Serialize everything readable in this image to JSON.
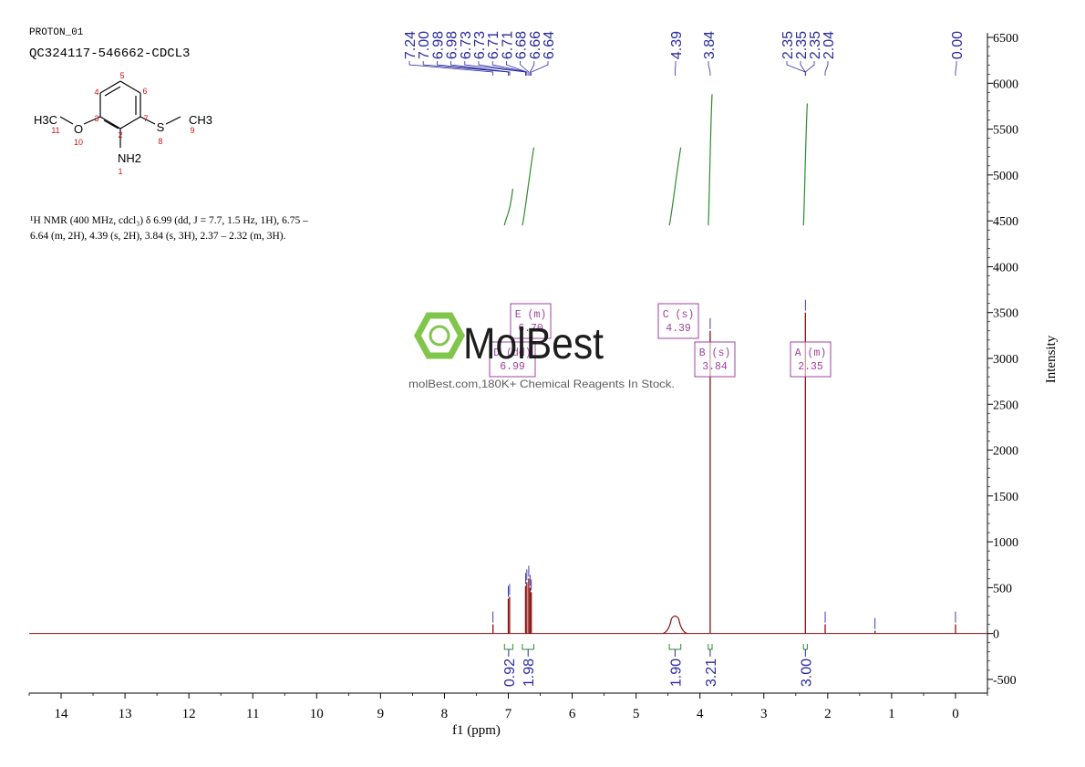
{
  "header": {
    "experiment": "PROTON_01",
    "sample": "QC324117-546662-CDCL3"
  },
  "molecule": {
    "atoms": [
      {
        "label": "H3C",
        "number": "11"
      },
      {
        "label": "O",
        "number": "10"
      },
      {
        "label": "",
        "number": "3"
      },
      {
        "label": "",
        "number": "4"
      },
      {
        "label": "",
        "number": "5"
      },
      {
        "label": "",
        "number": "6"
      },
      {
        "label": "",
        "number": "7"
      },
      {
        "label": "",
        "number": "2"
      },
      {
        "label": "NH2",
        "number": "1"
      },
      {
        "label": "S",
        "number": "8"
      },
      {
        "label": "CH3",
        "number": "9"
      }
    ]
  },
  "description": {
    "line1": "¹H NMR (400 MHz, cdcl₃) δ 6.99 (dd, J = 7.7, 1.5 Hz, 1H), 6.75 –",
    "line2": "6.64 (m, 2H), 4.39 (s, 2H), 3.84 (s, 3H), 2.37 – 2.32 (m, 3H)."
  },
  "watermark": {
    "brand": "MolBest",
    "tagline": "molBest.com,180K+ Chemical Reagents In Stock."
  },
  "colors": {
    "spectrum": "#8b1010",
    "peak_label": "#2a2aa0",
    "integral": "#2e8b2e",
    "multiplet": "#a040a0",
    "axis": "#000000",
    "logo": "#7cc242"
  },
  "chart_data": {
    "type": "line",
    "title": "",
    "xlabel": "f1 (ppm)",
    "ylabel": "Intensity",
    "xlim": [
      14.5,
      -0.5
    ],
    "ylim": [
      -650,
      6550
    ],
    "x_reversed": true,
    "x_ticks": [
      14,
      13,
      12,
      11,
      10,
      9,
      8,
      7,
      6,
      5,
      4,
      3,
      2,
      1,
      0
    ],
    "y_ticks": [
      6500,
      6000,
      5500,
      5000,
      4500,
      4000,
      3500,
      3000,
      2500,
      2000,
      1500,
      1000,
      500,
      0,
      -500
    ],
    "y_axis_side": "right",
    "grid": false,
    "peaks": [
      {
        "ppm": 7.24,
        "height": 100
      },
      {
        "ppm": 7.0,
        "height": 380
      },
      {
        "ppm": 6.98,
        "height": 400
      },
      {
        "ppm": 6.73,
        "height": 520
      },
      {
        "ppm": 6.71,
        "height": 560
      },
      {
        "ppm": 6.68,
        "height": 600
      },
      {
        "ppm": 6.66,
        "height": 500
      },
      {
        "ppm": 6.64,
        "height": 450
      },
      {
        "ppm": 4.39,
        "height": 200,
        "broad": true
      },
      {
        "ppm": 3.84,
        "height": 3300
      },
      {
        "ppm": 2.35,
        "height": 3500
      },
      {
        "ppm": 2.04,
        "height": 100
      },
      {
        "ppm": 1.26,
        "height": 30
      },
      {
        "ppm": 0.0,
        "height": 100
      }
    ],
    "peak_label_groups": [
      {
        "labels": [
          "7.24",
          "7.00",
          "6.98",
          "6.98",
          "6.73",
          "6.73",
          "6.71",
          "6.71",
          "6.68",
          "6.66",
          "6.64"
        ]
      },
      {
        "labels": [
          "4.39"
        ]
      },
      {
        "labels": [
          "3.84"
        ]
      },
      {
        "labels": [
          "2.35",
          "2.35",
          "2.35",
          "2.04"
        ]
      },
      {
        "labels": [
          "0.00"
        ]
      }
    ],
    "integrals": [
      {
        "from": 7.06,
        "to": 6.93,
        "value": "0.92",
        "start": 4450,
        "end": 4850
      },
      {
        "from": 6.78,
        "to": 6.6,
        "value": "1.98",
        "start": 4450,
        "end": 5300
      },
      {
        "from": 4.48,
        "to": 4.3,
        "value": "1.90",
        "start": 4450,
        "end": 5300
      },
      {
        "from": 3.87,
        "to": 3.81,
        "value": "3.21",
        "start": 4450,
        "end": 5880
      },
      {
        "from": 2.38,
        "to": 2.32,
        "value": "3.00",
        "start": 4450,
        "end": 5780
      }
    ],
    "multiplets": [
      {
        "letter": "A",
        "type": "(m)",
        "shift": "2.35"
      },
      {
        "letter": "B",
        "type": "(s)",
        "shift": "3.84"
      },
      {
        "letter": "C",
        "type": "(s)",
        "shift": "4.39"
      },
      {
        "letter": "D",
        "type": "(dd)",
        "shift": "6.99"
      },
      {
        "letter": "E",
        "type": "(m)",
        "shift": "6.70"
      }
    ]
  }
}
